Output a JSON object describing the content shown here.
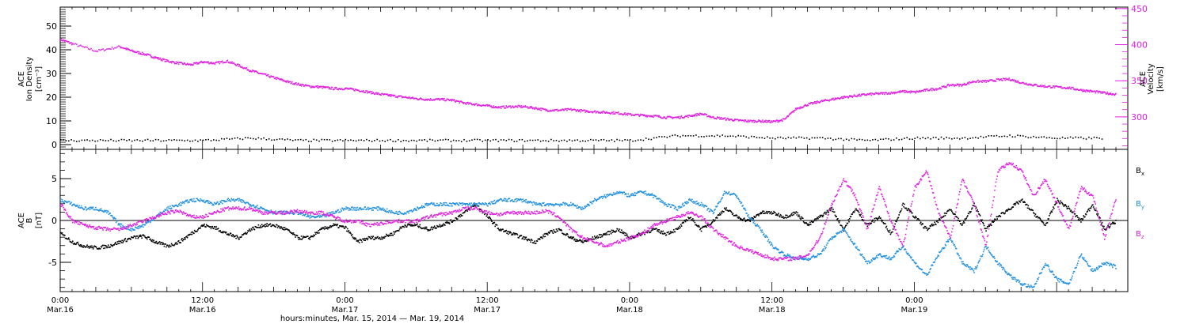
{
  "colors": {
    "black": "#000000",
    "magenta": "#e020e0",
    "blue": "#1f8fe0"
  },
  "chart_data": [
    {
      "type": "scatter",
      "panel": "top",
      "xlim": [
        0,
        90
      ],
      "x_unit": "hours from Mar.16 00:00",
      "left_axis": {
        "label_lines": [
          "ACE",
          "Ion Density",
          "[cm⁻³]"
        ],
        "ylim": [
          -2,
          58
        ],
        "ticks": [
          0,
          10,
          20,
          30,
          40,
          50
        ],
        "tick_labels": [
          "0",
          "10",
          "20",
          "30",
          "40",
          "50"
        ]
      },
      "right_axis": {
        "label_lines": [
          "ACE",
          "Velocity",
          "[km/s]"
        ],
        "ylim": [
          255,
          452
        ],
        "ticks": [
          300,
          350,
          400,
          450
        ],
        "tick_labels": [
          "300",
          "350",
          "400",
          "450"
        ]
      },
      "series": [
        {
          "color": "magenta",
          "axis": "right",
          "x": [
            0,
            1,
            3,
            5,
            6,
            7,
            8,
            9,
            10,
            11,
            12,
            13,
            14,
            15,
            16,
            17,
            18,
            19,
            20,
            21,
            22,
            23,
            24,
            25,
            26,
            27,
            28,
            29,
            30,
            31,
            32,
            33,
            34,
            35,
            36,
            37,
            38,
            39,
            40,
            41,
            42,
            43,
            44,
            45,
            46,
            47,
            48,
            49,
            50,
            51,
            52,
            53,
            54,
            55,
            56,
            57,
            58,
            59,
            60,
            61,
            62,
            63,
            64,
            65,
            66,
            67,
            68,
            69,
            70,
            71,
            72,
            73,
            74,
            75,
            76,
            77,
            78,
            79,
            80,
            81,
            82,
            83,
            84,
            85,
            86,
            87,
            88,
            89
          ],
          "y": [
            408,
            402,
            392,
            398,
            392,
            388,
            383,
            378,
            375,
            373,
            377,
            375,
            378,
            372,
            365,
            360,
            355,
            350,
            346,
            343,
            342,
            340,
            340,
            338,
            335,
            332,
            330,
            328,
            326,
            325,
            325,
            324,
            320,
            318,
            316,
            314,
            315,
            315,
            313,
            310,
            310,
            311,
            309,
            308,
            307,
            306,
            304,
            303,
            302,
            300,
            300,
            302,
            305,
            300,
            298,
            296,
            295,
            295,
            294,
            297,
            312,
            318,
            322,
            325,
            328,
            330,
            332,
            333,
            334,
            336,
            335,
            338,
            340,
            345,
            345,
            350,
            350,
            352,
            353,
            348,
            345,
            343,
            342,
            341,
            338,
            336,
            334,
            332
          ]
        },
        {
          "color": "black",
          "axis": "left",
          "x": [
            0,
            4,
            8,
            12,
            16,
            20,
            24,
            28,
            32,
            36,
            40,
            44,
            48,
            52,
            56,
            60,
            64,
            68,
            72,
            76,
            80,
            84,
            88
          ],
          "y": [
            2,
            2,
            2,
            2,
            3,
            2,
            2,
            2,
            2,
            2,
            2,
            2,
            2,
            4,
            4,
            3,
            3,
            2,
            3,
            3,
            4,
            3,
            3
          ]
        }
      ]
    },
    {
      "type": "scatter",
      "panel": "bottom",
      "xlim": [
        0,
        90
      ],
      "x_unit": "hours from Mar.16 00:00",
      "left_axis": {
        "label_lines": [
          "ACE",
          "B",
          "[nT]"
        ],
        "ylim": [
          -8.5,
          8.5
        ],
        "ticks": [
          -5,
          0,
          5
        ],
        "tick_labels": [
          "-5",
          "0",
          "5"
        ]
      },
      "legend": [
        {
          "main": "B",
          "sub": "x",
          "color": "black"
        },
        {
          "main": "B",
          "sub": "y",
          "color": "blue"
        },
        {
          "main": "B",
          "sub": "z",
          "color": "magenta"
        }
      ],
      "series": [
        {
          "color": "black",
          "x": [
            0,
            1,
            2,
            3,
            4,
            5,
            6,
            7,
            8,
            9,
            10,
            11,
            12,
            13,
            14,
            15,
            16,
            17,
            18,
            19,
            20,
            21,
            22,
            23,
            24,
            25,
            26,
            27,
            28,
            29,
            30,
            31,
            32,
            33,
            34,
            35,
            36,
            37,
            38,
            39,
            40,
            41,
            42,
            43,
            44,
            45,
            46,
            47,
            48,
            49,
            50,
            51,
            52,
            53,
            54,
            55,
            56,
            57,
            58,
            59,
            60,
            61,
            62,
            63,
            64,
            65,
            66,
            67,
            68,
            69,
            70,
            71,
            72,
            73,
            74,
            75,
            76,
            77,
            78,
            79,
            80,
            81,
            82,
            83,
            84,
            85,
            86,
            87,
            88,
            89
          ],
          "y": [
            -1.5,
            -2.5,
            -3,
            -3.2,
            -3,
            -2.5,
            -2,
            -1.8,
            -2.5,
            -3,
            -2.5,
            -1.5,
            -0.5,
            -0.8,
            -1.5,
            -2,
            -1,
            -0.5,
            -0.5,
            -1,
            -2,
            -2,
            -1,
            -0.5,
            -0.8,
            -2.5,
            -2,
            -2,
            -1.5,
            -0.5,
            -0.5,
            -1,
            -0.5,
            0,
            1,
            2,
            0.5,
            -1,
            -1.5,
            -2,
            -2.5,
            -1.5,
            -1,
            -2,
            -2.5,
            -2,
            -1.5,
            -1,
            -2,
            -1.5,
            -1,
            -1.5,
            -1,
            0.5,
            -1,
            0,
            1.5,
            0.5,
            0,
            1,
            1,
            0.5,
            1,
            -0.5,
            0.5,
            1.5,
            -1,
            1.5,
            -0.5,
            0.5,
            -1.5,
            2,
            0.5,
            -1,
            0,
            1.5,
            -0.5,
            2,
            -1,
            0.5,
            1.5,
            2.5,
            1,
            -0.5,
            2.5,
            1.5,
            0,
            2,
            -1,
            0
          ]
        },
        {
          "color": "blue",
          "x": [
            0,
            1,
            2,
            3,
            4,
            5,
            6,
            7,
            8,
            9,
            10,
            11,
            12,
            13,
            14,
            15,
            16,
            17,
            18,
            19,
            20,
            21,
            22,
            23,
            24,
            25,
            26,
            27,
            28,
            29,
            30,
            31,
            32,
            33,
            34,
            35,
            36,
            37,
            38,
            39,
            40,
            41,
            42,
            43,
            44,
            45,
            46,
            47,
            48,
            49,
            50,
            51,
            52,
            53,
            54,
            55,
            56,
            57,
            58,
            59,
            60,
            61,
            62,
            63,
            64,
            65,
            66,
            67,
            68,
            69,
            70,
            71,
            72,
            73,
            74,
            75,
            76,
            77,
            78,
            79,
            80,
            81,
            82,
            83,
            84,
            85,
            86,
            87,
            88,
            89
          ],
          "y": [
            2.5,
            2,
            1.5,
            1.5,
            1,
            -0.5,
            -1,
            -0.5,
            0.5,
            1.5,
            2,
            2.5,
            2.5,
            2,
            2.5,
            2.5,
            2,
            1.5,
            1,
            1,
            1,
            0.5,
            0.5,
            1,
            1.5,
            1.5,
            1.5,
            1.5,
            1,
            1,
            1.5,
            2,
            2,
            2,
            2,
            2,
            2,
            2.5,
            2.5,
            2.5,
            2,
            2,
            2,
            2,
            1.5,
            2.5,
            3,
            3.5,
            3,
            3.5,
            3,
            2,
            1.5,
            2.5,
            2,
            1,
            3.5,
            3,
            0.5,
            -1,
            -3,
            -4,
            -4.5,
            -4.5,
            -4,
            -2,
            -1,
            -3,
            -5,
            -4,
            -4.5,
            -3,
            -5,
            -6.5,
            -4,
            -2,
            -5,
            -6,
            -3,
            -5,
            -6.5,
            -7.5,
            -8,
            -5,
            -7,
            -7.5,
            -4,
            -6,
            -5,
            -5.5
          ]
        },
        {
          "color": "magenta",
          "x": [
            0,
            1,
            2,
            3,
            4,
            5,
            6,
            7,
            8,
            9,
            10,
            11,
            12,
            13,
            14,
            15,
            16,
            17,
            18,
            19,
            20,
            21,
            22,
            23,
            24,
            25,
            26,
            27,
            28,
            29,
            30,
            31,
            32,
            33,
            34,
            35,
            36,
            37,
            38,
            39,
            40,
            41,
            42,
            43,
            44,
            45,
            46,
            47,
            48,
            49,
            50,
            51,
            52,
            53,
            54,
            55,
            56,
            57,
            58,
            59,
            60,
            61,
            62,
            63,
            64,
            65,
            66,
            67,
            68,
            69,
            70,
            71,
            72,
            73,
            74,
            75,
            76,
            77,
            78,
            79,
            80,
            81,
            82,
            83,
            84,
            85,
            86,
            87,
            88,
            89
          ],
          "y": [
            2,
            0,
            -0.5,
            -0.8,
            -1,
            -1,
            -0.5,
            0,
            0.5,
            1,
            1.2,
            0.5,
            0.5,
            1,
            1.5,
            1.5,
            1.5,
            1,
            1,
            1,
            1.2,
            1,
            1,
            0.5,
            0,
            0,
            -0.5,
            -0.3,
            0,
            0,
            0,
            0.5,
            0.8,
            1,
            1.5,
            1.5,
            1,
            0.8,
            1,
            1,
            1,
            1.2,
            0.5,
            -1,
            -2,
            -2.5,
            -3,
            -2.5,
            -2,
            -1.5,
            -0.5,
            0,
            0.5,
            1,
            0.5,
            -1,
            -2,
            -3,
            -3.5,
            -4,
            -4.5,
            -4.5,
            -4.5,
            -4,
            -2,
            2,
            5,
            3,
            -1,
            4,
            0,
            -3,
            4,
            6,
            1,
            -2,
            5,
            2,
            -3,
            6,
            7,
            6,
            3,
            5,
            2,
            -1,
            4,
            3,
            -2,
            3
          ]
        }
      ]
    }
  ],
  "x_axis": {
    "ticks": [
      {
        "hour": 0,
        "time": "0:00",
        "date": "Mar.16"
      },
      {
        "hour": 12,
        "time": "12:00",
        "date": "Mar.16"
      },
      {
        "hour": 24,
        "time": "0:00",
        "date": "Mar.17"
      },
      {
        "hour": 36,
        "time": "12:00",
        "date": "Mar.17"
      },
      {
        "hour": 48,
        "time": "0:00",
        "date": "Mar.18"
      },
      {
        "hour": 60,
        "time": "12:00",
        "date": "Mar.18"
      },
      {
        "hour": 72,
        "time": "0:00",
        "date": "Mar.19"
      }
    ],
    "title": "hours:minutes, Mar. 15, 2014 — Mar. 19, 2014"
  }
}
